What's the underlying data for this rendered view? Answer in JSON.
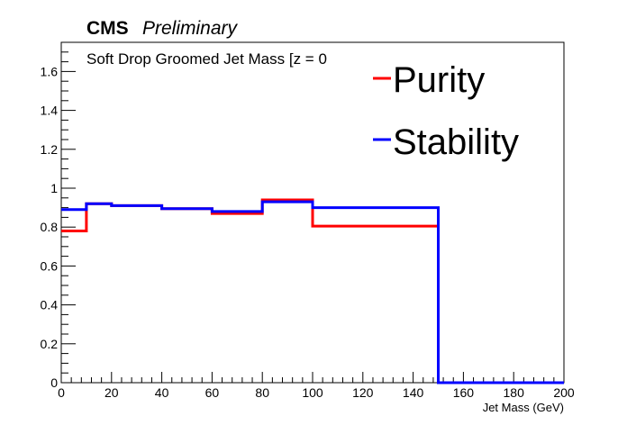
{
  "header": {
    "experiment": "CMS",
    "status": "Preliminary",
    "plot_label": "Soft Drop Groomed Jet Mass [z = 0"
  },
  "legend": {
    "placement": "top-right",
    "items": [
      {
        "label": "Purity",
        "color": "#ff0000"
      },
      {
        "label": "Stability",
        "color": "#0000ff"
      }
    ]
  },
  "chart_data": {
    "type": "line",
    "style": "step-histogram",
    "xlabel": "Jet Mass (GeV)",
    "ylabel": "",
    "xlim": [
      0,
      200
    ],
    "ylim": [
      0,
      1.75
    ],
    "grid": false,
    "x_ticks": [
      0,
      20,
      40,
      60,
      80,
      100,
      120,
      140,
      160,
      180,
      200
    ],
    "x_tick_labels": [
      "0",
      "20",
      "40",
      "60",
      "80",
      "100",
      "120",
      "140",
      "160",
      "180",
      "200"
    ],
    "y_ticks": [
      0,
      0.2,
      0.4,
      0.6,
      0.8,
      1,
      1.2,
      1.4,
      1.6
    ],
    "y_tick_labels": [
      "0",
      "0.2",
      "0.4",
      "0.6",
      "0.8",
      "1",
      "1.2",
      "1.4",
      "1.6"
    ],
    "bin_edges": [
      0,
      10,
      20,
      40,
      60,
      80,
      100,
      150,
      200
    ],
    "series": [
      {
        "name": "Purity",
        "color": "#ff0000",
        "values": [
          0.78,
          0.92,
          0.91,
          0.895,
          0.87,
          0.94,
          0.805,
          0
        ]
      },
      {
        "name": "Stability",
        "color": "#0000ff",
        "values": [
          0.89,
          0.92,
          0.91,
          0.895,
          0.88,
          0.93,
          0.9,
          0
        ]
      }
    ]
  }
}
